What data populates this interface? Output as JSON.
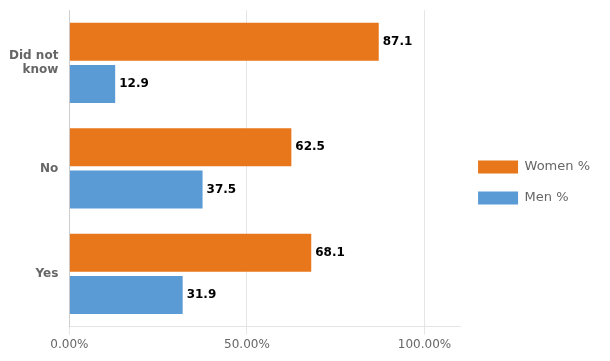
{
  "chart_data": {
    "type": "bar",
    "orientation": "horizontal",
    "categories": [
      "Did not\nknow",
      "No",
      "Yes"
    ],
    "series": [
      {
        "name": "Women %",
        "color": "#E8761A",
        "values": [
          87.1,
          62.5,
          68.1
        ]
      },
      {
        "name": "Men %",
        "color": "#5B9BD5",
        "values": [
          12.9,
          37.5,
          31.9
        ]
      }
    ],
    "xlim": [
      0,
      110
    ],
    "xticks": [
      {
        "value": 0,
        "label": "0.00%"
      },
      {
        "value": 50,
        "label": "50.00%"
      },
      {
        "value": 100,
        "label": "100.00%"
      }
    ],
    "grid": true,
    "legend": "right",
    "data_labels": true
  }
}
